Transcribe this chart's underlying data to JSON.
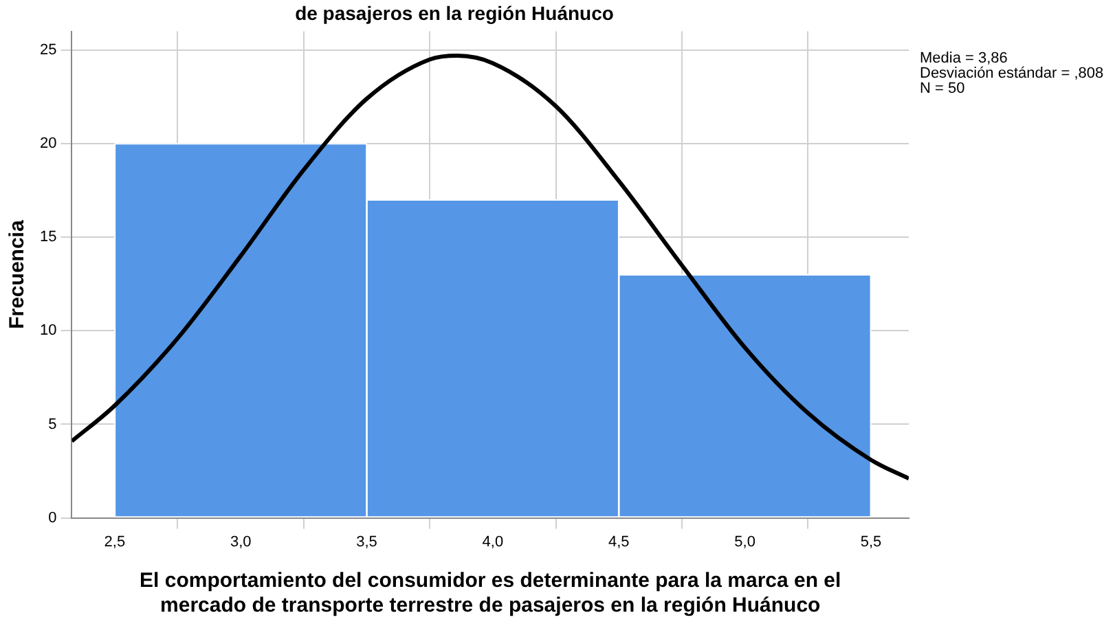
{
  "chart_data": {
    "type": "histogram",
    "title": "de pasajeros en la región Huánuco",
    "xlabel": "El comportamiento del consumidor es determinante para la marca en el mercado de transporte terrestre de pasajeros en la región Huánuco",
    "ylabel": "Frecuencia",
    "bins": [
      2.5,
      3.5,
      4.5,
      5.5
    ],
    "values": [
      20,
      17,
      13
    ],
    "color": "#5596e6",
    "series": [
      {
        "type": "line",
        "color": "#000000",
        "x": [
          2.33,
          2.5,
          2.75,
          3.0,
          3.25,
          3.5,
          3.75,
          3.86,
          4.0,
          4.25,
          4.5,
          4.75,
          5.0,
          5.25,
          5.5,
          5.65
        ],
        "values": [
          4.1,
          6.0,
          9.6,
          14.0,
          18.6,
          22.4,
          24.5,
          24.7,
          24.3,
          22.0,
          18.0,
          13.5,
          9.1,
          5.6,
          3.1,
          2.1
        ]
      }
    ],
    "marker": "none",
    "line_style": "solid",
    "xlim": [
      2.33,
      5.65
    ],
    "xticks": [
      {
        "value": 2.5,
        "label": "2,5"
      },
      {
        "value": 3.0,
        "label": "3,0"
      },
      {
        "value": 3.5,
        "label": "3,5"
      },
      {
        "value": 4.0,
        "label": "4,0"
      },
      {
        "value": 4.5,
        "label": "4,5"
      },
      {
        "value": 5.0,
        "label": "5,0"
      },
      {
        "value": 5.5,
        "label": "5,5"
      }
    ],
    "ylim": [
      0,
      26
    ],
    "yticks": [
      0,
      5,
      10,
      15,
      20,
      25
    ],
    "grid": true,
    "legend": false,
    "annotations": [
      "Media = 3,86",
      "Desviación estándar = ,808",
      "N = 50"
    ]
  }
}
